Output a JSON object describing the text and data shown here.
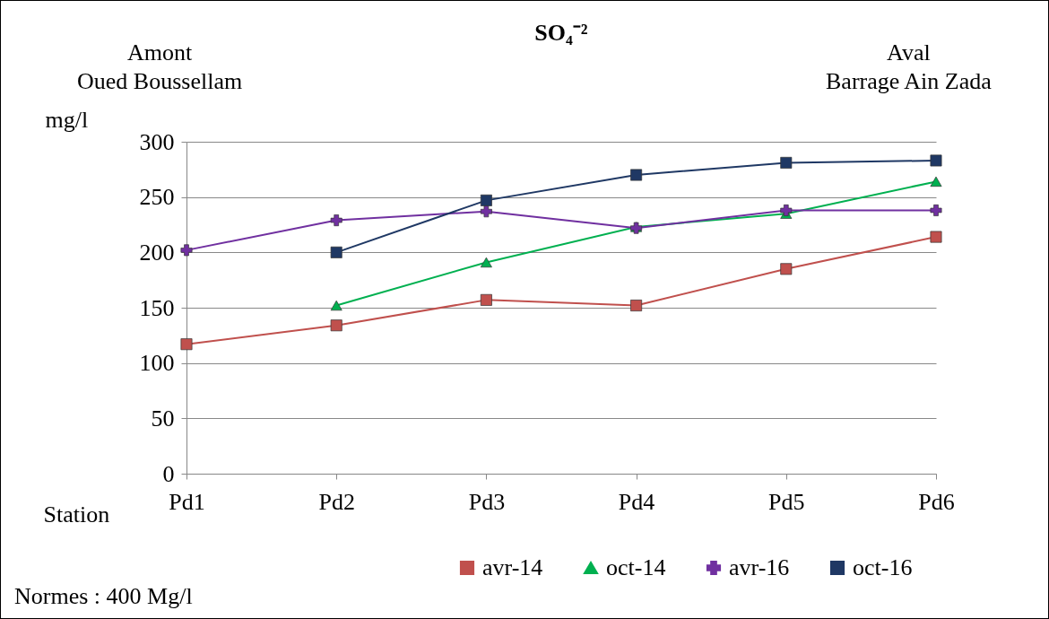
{
  "chart_data": {
    "type": "line",
    "title": "SO₄⁻²",
    "xlabel": "Station",
    "ylabel": "mg/l",
    "annotations": [
      "Amont\nOued Boussellam",
      "Aval\nBarrage Ain Zada",
      "Normes : 400 Mg/l"
    ],
    "categories": [
      "Pd1",
      "Pd2",
      "Pd3",
      "Pd4",
      "Pd5",
      "Pd6"
    ],
    "series": [
      {
        "name": "avr-14",
        "color": "#c0504d",
        "marker": "square",
        "values": [
          117,
          134,
          157,
          152,
          185,
          214
        ]
      },
      {
        "name": "oct-14",
        "color": "#00b050",
        "marker": "triangle",
        "values": [
          null,
          152,
          191,
          223,
          235,
          264
        ]
      },
      {
        "name": "avr-16",
        "color": "#7030a0",
        "marker": "cross",
        "values": [
          202,
          229,
          237,
          222,
          238,
          238
        ]
      },
      {
        "name": "oct-16",
        "color": "#1f3864",
        "marker": "square",
        "values": [
          null,
          200,
          247,
          270,
          281,
          283
        ]
      }
    ],
    "ylim": [
      0,
      300
    ],
    "yticks": [
      0,
      50,
      100,
      150,
      200,
      250,
      300
    ],
    "grid": "y",
    "legend": "bottom"
  }
}
